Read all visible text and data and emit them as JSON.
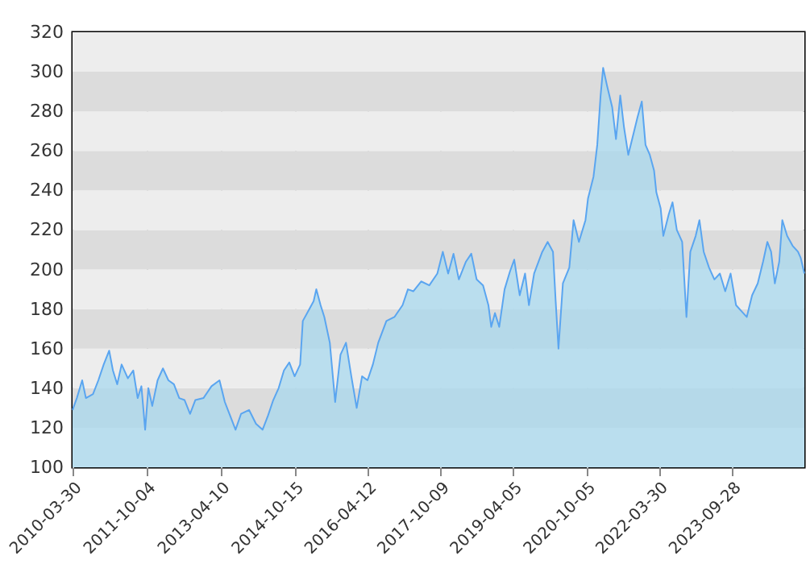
{
  "chart_data": {
    "type": "area",
    "xlim": [
      "2010-03-30",
      "2025-03-24"
    ],
    "ylim": [
      100,
      320
    ],
    "yticks": [
      100,
      120,
      140,
      160,
      180,
      200,
      220,
      240,
      260,
      280,
      300,
      320
    ],
    "xticks": [
      "2010-03-30",
      "2011-10-04",
      "2013-04-10",
      "2014-10-15",
      "2016-04-12",
      "2017-10-09",
      "2019-04-05",
      "2020-10-05",
      "2022-03-30",
      "2023-09-28"
    ],
    "grid": true,
    "x": [
      "2010-03-30",
      "2010-05-01",
      "2010-06-10",
      "2010-07-08",
      "2010-08-30",
      "2010-10-09",
      "2010-11-18",
      "2010-12-29",
      "2011-01-26",
      "2011-02-27",
      "2011-04-01",
      "2011-05-18",
      "2011-06-27",
      "2011-07-30",
      "2011-08-27",
      "2011-09-24",
      "2011-10-18",
      "2011-11-16",
      "2011-12-26",
      "2012-02-04",
      "2012-03-16",
      "2012-04-26",
      "2012-06-05",
      "2012-07-15",
      "2012-08-25",
      "2012-10-03",
      "2012-12-03",
      "2013-02-01",
      "2013-04-02",
      "2013-05-12",
      "2013-06-21",
      "2013-07-31",
      "2013-09-10",
      "2013-11-09",
      "2013-12-31",
      "2014-02-18",
      "2014-03-30",
      "2014-05-09",
      "2014-06-18",
      "2014-07-28",
      "2014-09-06",
      "2014-10-16",
      "2014-11-26",
      "2014-12-16",
      "2015-01-26",
      "2015-03-07",
      "2015-03-27",
      "2015-04-28",
      "2015-05-26",
      "2015-07-06",
      "2015-08-15",
      "2015-09-24",
      "2015-11-04",
      "2015-12-14",
      "2016-01-23",
      "2016-03-03",
      "2016-04-13",
      "2016-05-23",
      "2016-07-02",
      "2016-09-01",
      "2016-10-31",
      "2016-12-31",
      "2017-02-09",
      "2017-03-21",
      "2017-05-19",
      "2017-07-19",
      "2017-09-17",
      "2017-10-28",
      "2017-12-07",
      "2018-01-16",
      "2018-02-25",
      "2018-04-19",
      "2018-05-29",
      "2018-07-08",
      "2018-08-25",
      "2018-10-04",
      "2018-10-25",
      "2018-11-22",
      "2018-12-24",
      "2019-02-02",
      "2019-03-14",
      "2019-04-15",
      "2019-05-26",
      "2019-07-05",
      "2019-08-03",
      "2019-09-11",
      "2019-11-11",
      "2019-12-21",
      "2020-01-30",
      "2020-02-19",
      "2020-03-11",
      "2020-04-13",
      "2020-05-31",
      "2020-07-02",
      "2020-08-11",
      "2020-09-29",
      "2020-10-18",
      "2020-11-28",
      "2020-12-26",
      "2021-01-20",
      "2021-02-08",
      "2021-03-09",
      "2021-04-17",
      "2021-05-15",
      "2021-06-16",
      "2021-07-14",
      "2021-08-15",
      "2021-09-24",
      "2021-10-23",
      "2021-11-24",
      "2021-12-22",
      "2022-01-23",
      "2022-02-24",
      "2022-03-13",
      "2022-04-14",
      "2022-05-04",
      "2022-06-14",
      "2022-07-12",
      "2022-08-13",
      "2022-09-22",
      "2022-10-24",
      "2022-11-22",
      "2023-01-01",
      "2023-01-29",
      "2023-03-02",
      "2023-04-11",
      "2023-05-21",
      "2023-07-01",
      "2023-08-10",
      "2023-09-19",
      "2023-10-30",
      "2023-12-09",
      "2024-01-18",
      "2024-02-27",
      "2024-04-09",
      "2024-05-19",
      "2024-06-20",
      "2024-07-18",
      "2024-08-15",
      "2024-09-17",
      "2024-10-10",
      "2024-11-15",
      "2024-12-26",
      "2025-02-04",
      "2025-02-24",
      "2025-03-24"
    ],
    "series": [
      {
        "color": "#5aa5f0",
        "values": [
          129,
          135,
          144,
          135,
          137,
          144,
          152,
          159,
          149,
          142,
          152,
          145,
          149,
          135,
          141,
          119,
          140,
          131,
          144,
          150,
          144,
          142,
          135,
          134,
          127,
          134,
          135,
          141,
          144,
          133,
          126,
          119,
          127,
          129,
          122,
          119,
          126,
          134,
          140,
          149,
          153,
          146,
          152,
          174,
          179,
          184,
          190,
          182,
          176,
          163,
          133,
          157,
          163,
          146,
          130,
          146,
          144,
          152,
          163,
          174,
          176,
          182,
          190,
          189,
          194,
          192,
          198,
          209,
          198,
          208,
          195,
          204,
          208,
          195,
          192,
          182,
          171,
          178,
          171,
          190,
          199,
          205,
          187,
          198,
          182,
          198,
          209,
          214,
          209,
          184,
          160,
          193,
          201,
          225,
          214,
          225,
          236,
          247,
          263,
          288,
          302,
          293,
          282,
          266,
          288,
          272,
          258,
          269,
          277,
          285,
          263,
          258,
          250,
          239,
          231,
          217,
          228,
          234,
          220,
          214,
          176,
          209,
          217,
          225,
          209,
          201,
          195,
          198,
          189,
          198,
          182,
          179,
          176,
          187,
          193,
          204,
          214,
          209,
          193,
          204,
          225,
          217,
          212,
          209,
          206,
          198
        ]
      }
    ]
  }
}
